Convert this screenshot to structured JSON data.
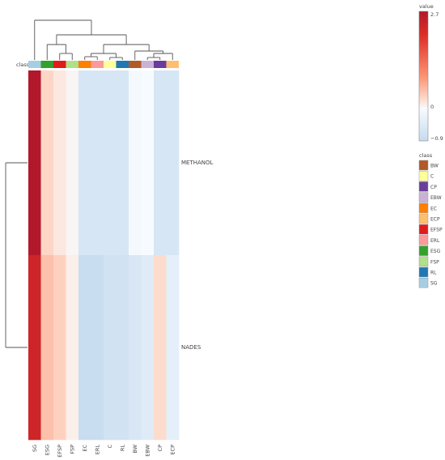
{
  "chart_data": {
    "type": "heatmap",
    "class_label": "class",
    "columns": [
      "SG",
      "ESG",
      "EFSP",
      "FSP",
      "EC",
      "ERL",
      "C",
      "RL",
      "BW",
      "EBW",
      "CP",
      "ECP"
    ],
    "rows": [
      "METHANOL",
      "NADES"
    ],
    "values": [
      [
        2.7,
        0.3,
        0.15,
        0.05,
        -0.6,
        -0.6,
        -0.6,
        -0.6,
        -0.05,
        0.0,
        -0.6,
        -0.6
      ],
      [
        2.3,
        0.5,
        0.35,
        0.1,
        -0.85,
        -0.85,
        -0.7,
        -0.7,
        -0.55,
        -0.45,
        0.25,
        -0.35
      ]
    ],
    "column_class_colors": [
      "#a6cee3",
      "#33a02c",
      "#e31a1c",
      "#b2df8a",
      "#ff7f00",
      "#fb9a99",
      "#ffff99",
      "#1f78b4",
      "#b15928",
      "#cab2d6",
      "#6a3d9a",
      "#fdbf6f"
    ],
    "colorbar": {
      "title": "value",
      "max_label": "2.7",
      "mid_label": "0",
      "min_label": "−0.9",
      "range": [
        -0.9,
        2.7
      ],
      "colors": [
        "#c6dbef",
        "#f7fbff",
        "#fee0d2",
        "#fc9272",
        "#de2d26",
        "#b2182b"
      ]
    },
    "legend": {
      "title": "class",
      "items": [
        {
          "label": "BW",
          "color": "#b15928"
        },
        {
          "label": "C",
          "color": "#ffff99"
        },
        {
          "label": "CP",
          "color": "#6a3d9a"
        },
        {
          "label": "EBW",
          "color": "#cab2d6"
        },
        {
          "label": "EC",
          "color": "#ff7f00"
        },
        {
          "label": "ECP",
          "color": "#fdbf6f"
        },
        {
          "label": "EFSP",
          "color": "#e31a1c"
        },
        {
          "label": "ERL",
          "color": "#fb9a99"
        },
        {
          "label": "ESG",
          "color": "#33a02c"
        },
        {
          "label": "FSP",
          "color": "#b2df8a"
        },
        {
          "label": "RL",
          "color": "#1f78b4"
        },
        {
          "label": "SG",
          "color": "#a6cee3"
        }
      ]
    },
    "column_dendrogram": [
      {
        "left": 0,
        "right": 1
      },
      {
        "left": 2,
        "right": 3
      },
      {
        "left": 4,
        "right": 5
      },
      {
        "left": 6,
        "right": 7
      },
      {
        "left": 8,
        "right": 9
      },
      {
        "left": 10,
        "right": 11
      }
    ]
  }
}
